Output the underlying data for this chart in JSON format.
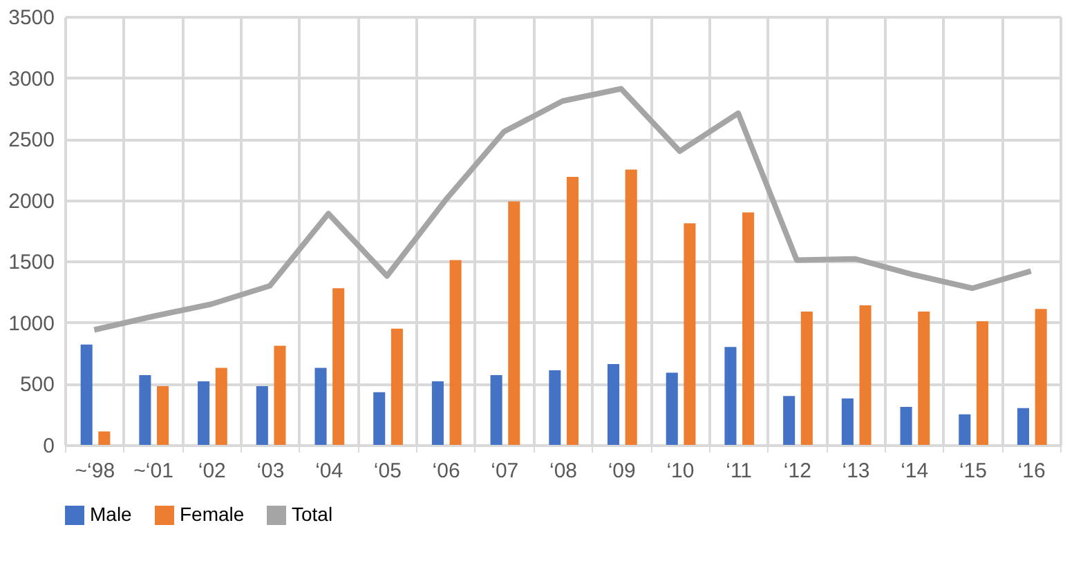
{
  "chart_data": {
    "type": "bar",
    "categories": [
      "~‘98",
      "~‘01",
      "‘02",
      "‘03",
      "‘04",
      "‘05",
      "‘06",
      "‘07",
      "‘08",
      "‘09",
      "‘10",
      "‘11",
      "‘12",
      "‘13",
      "‘14",
      "‘15",
      "‘16"
    ],
    "series": [
      {
        "name": "Male",
        "color": "#4472c4",
        "values": [
          820,
          570,
          520,
          480,
          630,
          430,
          520,
          570,
          610,
          660,
          590,
          800,
          400,
          380,
          310,
          250,
          300
        ]
      },
      {
        "name": "Female",
        "color": "#ed7d31",
        "values": [
          110,
          480,
          630,
          810,
          1280,
          950,
          1510,
          1990,
          2190,
          2250,
          1810,
          1900,
          1090,
          1140,
          1090,
          1010,
          1110
        ]
      },
      {
        "name": "Total",
        "type": "line",
        "color": "#a5a5a5",
        "values": [
          940,
          1050,
          1150,
          1300,
          1890,
          1380,
          2000,
          2560,
          2810,
          2910,
          2400,
          2710,
          1510,
          1520,
          1390,
          1280,
          1420
        ]
      }
    ],
    "ylim": [
      0,
      3500
    ],
    "yticks": [
      0,
      500,
      1000,
      1500,
      2000,
      2500,
      3000,
      3500
    ],
    "grid": true,
    "legend": "bottom",
    "marker": "none",
    "line_style": "solid"
  }
}
